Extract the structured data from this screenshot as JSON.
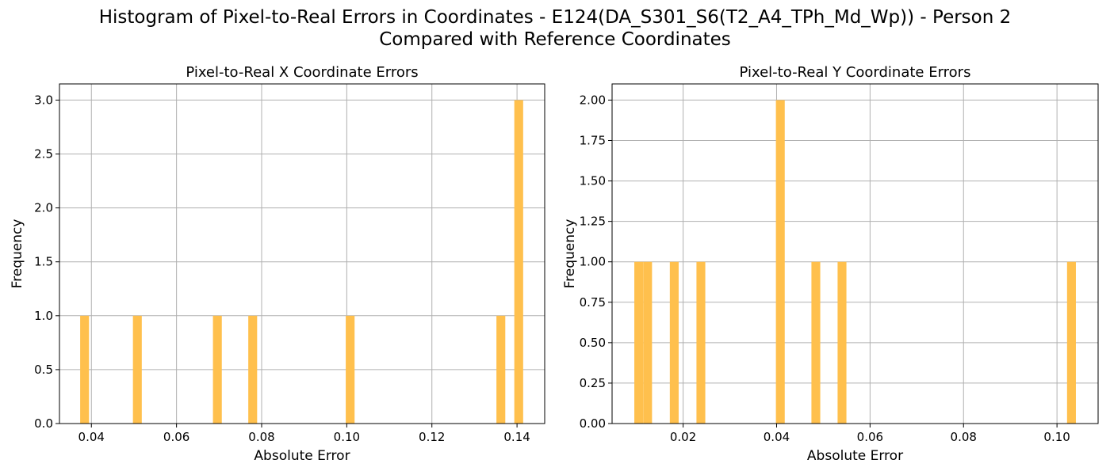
{
  "figure": {
    "title_line1": "Histogram of Pixel-to-Real Errors in Coordinates - E124(DA_S301_S6(T2_A4_TPh_Md_Wp)) - Person 2",
    "title_line2": "Compared with Reference Coordinates"
  },
  "bar_color": "#FFC04D",
  "grid_color": "#b0b0b0",
  "chart_data": [
    {
      "type": "bar",
      "title": "Pixel-to-Real X Coordinate Errors",
      "xlabel": "Absolute Error",
      "ylabel": "Frequency",
      "xlim": [
        0.0325,
        0.1465
      ],
      "ylim": [
        0,
        3.15
      ],
      "grid": true,
      "x_ticks": [
        0.04,
        0.06,
        0.08,
        0.1,
        0.12,
        0.14
      ],
      "x_tick_labels": [
        "0.04",
        "0.06",
        "0.08",
        "0.10",
        "0.12",
        "0.14"
      ],
      "y_ticks": [
        0,
        0.5,
        1.0,
        1.5,
        2.0,
        2.5,
        3.0
      ],
      "y_tick_labels": [
        "0.0",
        "0.5",
        "1.0",
        "1.5",
        "2.0",
        "2.5",
        "3.0"
      ],
      "bin_width": 0.00208,
      "bars": [
        {
          "x": 0.0384,
          "count": 1
        },
        {
          "x": 0.0508,
          "count": 1
        },
        {
          "x": 0.0696,
          "count": 1
        },
        {
          "x": 0.0779,
          "count": 1
        },
        {
          "x": 0.1008,
          "count": 1
        },
        {
          "x": 0.1362,
          "count": 1
        },
        {
          "x": 0.1404,
          "count": 3
        }
      ]
    },
    {
      "type": "bar",
      "title": "Pixel-to-Real Y Coordinate Errors",
      "xlabel": "Absolute Error",
      "ylabel": "Frequency",
      "xlim": [
        0.0048,
        0.1088
      ],
      "ylim": [
        0,
        2.1
      ],
      "grid": true,
      "x_ticks": [
        0.02,
        0.04,
        0.06,
        0.08,
        0.1
      ],
      "x_tick_labels": [
        "0.02",
        "0.04",
        "0.06",
        "0.08",
        "0.10"
      ],
      "y_ticks": [
        0,
        0.25,
        0.5,
        0.75,
        1.0,
        1.25,
        1.5,
        1.75,
        2.0
      ],
      "y_tick_labels": [
        "0.00",
        "0.25",
        "0.50",
        "0.75",
        "1.00",
        "1.25",
        "1.50",
        "1.75",
        "2.00"
      ],
      "bin_width": 0.00189,
      "bars": [
        {
          "x": 0.0105,
          "count": 1
        },
        {
          "x": 0.0124,
          "count": 1
        },
        {
          "x": 0.0181,
          "count": 1
        },
        {
          "x": 0.0238,
          "count": 1
        },
        {
          "x": 0.0408,
          "count": 2
        },
        {
          "x": 0.0484,
          "count": 1
        },
        {
          "x": 0.054,
          "count": 1
        },
        {
          "x": 0.1031,
          "count": 1
        }
      ]
    }
  ]
}
